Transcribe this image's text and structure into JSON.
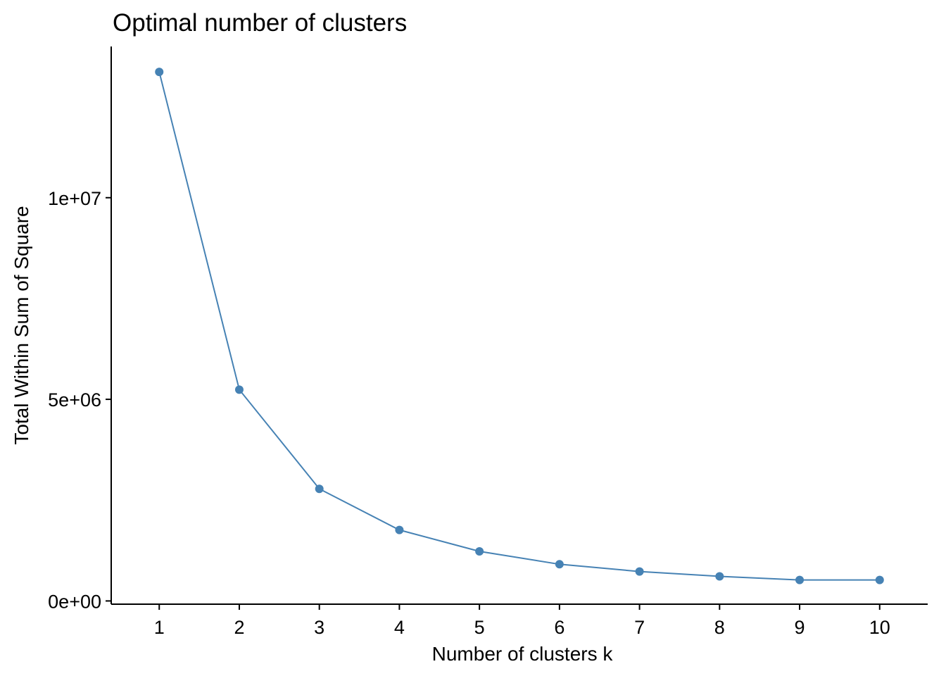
{
  "chart_data": {
    "type": "line",
    "title": "Optimal number of clusters",
    "xlabel": "Number of clusters k",
    "ylabel": "Total Within Sum of Square",
    "x": [
      1,
      2,
      3,
      4,
      5,
      6,
      7,
      8,
      9,
      10
    ],
    "x_tick_labels": [
      "1",
      "2",
      "3",
      "4",
      "5",
      "6",
      "7",
      "8",
      "9",
      "10"
    ],
    "series": [
      {
        "values": [
          13120000,
          5240000,
          2780000,
          1760000,
          1230000,
          910000,
          730000,
          610000,
          520000,
          520000
        ],
        "color": "#4682B4"
      }
    ],
    "y_ticks": [
      0,
      5000000,
      10000000
    ],
    "y_tick_labels": [
      "0e+00",
      "5e+06",
      "1e+07"
    ],
    "xlim": [
      0.4,
      10.6
    ],
    "ylim": [
      -80000,
      13750000
    ],
    "grid": false,
    "legend": "none"
  }
}
